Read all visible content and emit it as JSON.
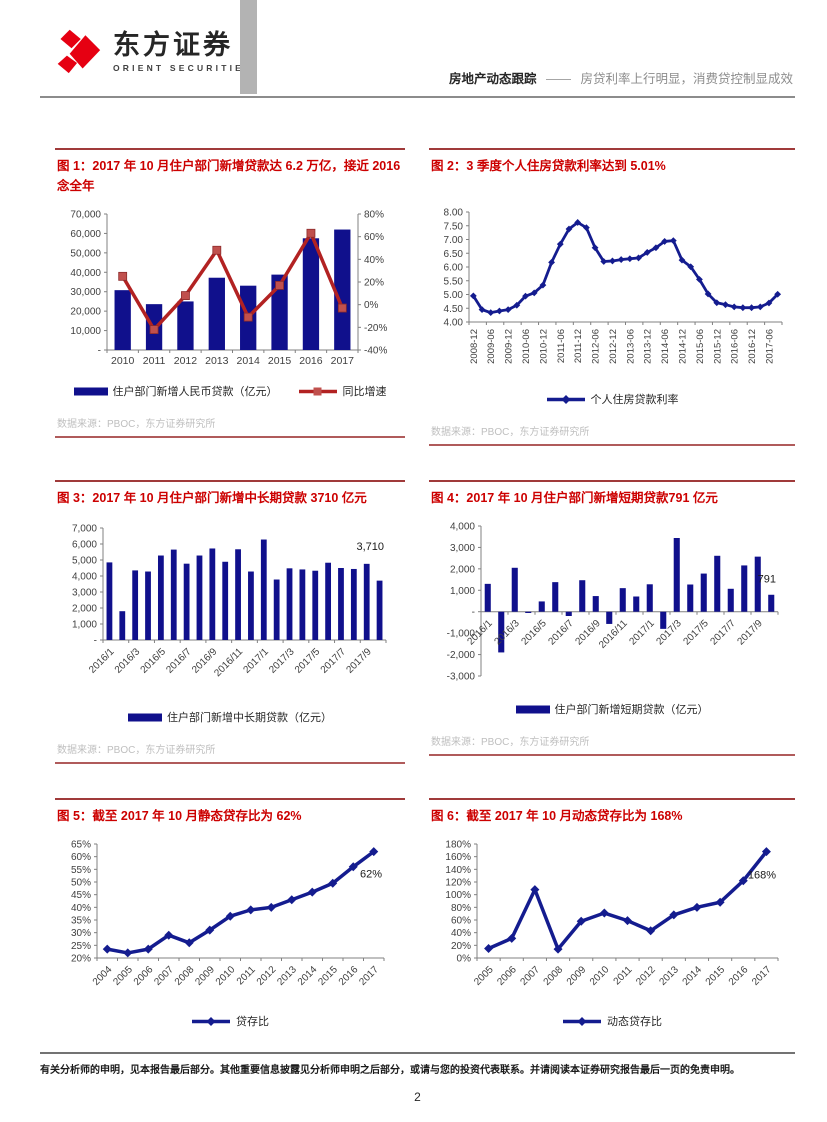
{
  "page": {
    "header": {
      "brand_cn": "东方证券",
      "brand_en": "ORIENT SECURITIES",
      "report_type": "房地产动态跟踪",
      "separator": "——",
      "subtitle": "房贷利率上行明显，消费贷控制显成效"
    },
    "footer": {
      "disclaimer": "有关分析师的申明，见本报告最后部分。其他重要信息披露见分析师申明之后部分，或请与您的投资代表联系。并请阅读本证券研究报告最后一页的免责申明。",
      "page_number": "2"
    },
    "colors": {
      "title_red": "#CC0000",
      "rule_red": "#A03A3A",
      "bar_navy": "#10108C",
      "line_navy": "#141C8F",
      "line_red": "#B22222",
      "marker_red": "#C0504D",
      "brand_red": "#E60012",
      "source_gray": "#BFBFBF"
    }
  },
  "chart_data": [
    {
      "id": "figure-1",
      "type": "combo",
      "title": "图 1：2017 年 10 月住户部门新增贷款达 6.2 万亿，接近 2016 念全年",
      "source": "数据来源：PBOC，东方证券研究所",
      "categories": [
        "2010",
        "2011",
        "2012",
        "2013",
        "2014",
        "2015",
        "2016",
        "2017"
      ],
      "x_label_every": 1,
      "series": [
        {
          "name": "住户部门新增人民币贷款（亿元）",
          "type": "bar",
          "axis": "left",
          "color": "#10108C",
          "values": [
            30800,
            23600,
            25000,
            37200,
            33100,
            38800,
            57500,
            62000
          ]
        },
        {
          "name": "同比增速",
          "type": "line",
          "axis": "right",
          "color": "#B22222",
          "marker": "square",
          "marker_color": "#C0504D",
          "values": [
            25,
            -22,
            8,
            48,
            -11,
            17,
            63,
            -3
          ]
        }
      ],
      "y_left": {
        "min": 0,
        "max": 70000,
        "tick_labels": [
          "70,000",
          "60,000",
          "50,000",
          "40,000",
          "30,000",
          "20,000",
          "10,000",
          "-"
        ]
      },
      "y_right": {
        "min": -40,
        "max": 80,
        "tick_labels": [
          "80%",
          "60%",
          "40%",
          "20%",
          "0%",
          "-20%",
          "-40%"
        ]
      },
      "annotation": null
    },
    {
      "id": "figure-2",
      "type": "line",
      "title": "图 2：3 季度个人住房贷款利率达到 5.01%",
      "source": "数据来源：PBOC，东方证券研究所",
      "categories": [
        "2008-12",
        "2009-03",
        "2009-06",
        "2009-09",
        "2009-12",
        "2010-03",
        "2010-06",
        "2010-09",
        "2010-12",
        "2011-03",
        "2011-06",
        "2011-09",
        "2011-12",
        "2012-03",
        "2012-06",
        "2012-09",
        "2012-12",
        "2013-03",
        "2013-06",
        "2013-09",
        "2013-12",
        "2014-03",
        "2014-06",
        "2014-09",
        "2014-12",
        "2015-03",
        "2015-06",
        "2015-09",
        "2015-12",
        "2016-03",
        "2016-06",
        "2016-09",
        "2016-12",
        "2017-03",
        "2017-06",
        "2017-09"
      ],
      "x_label_every": 2,
      "series": [
        {
          "name": "个人住房贷款利率",
          "type": "line",
          "axis": "left",
          "color": "#141C8F",
          "marker": "diamond",
          "values": [
            4.95,
            4.45,
            4.34,
            4.4,
            4.45,
            4.61,
            4.94,
            5.06,
            5.34,
            6.17,
            6.83,
            7.38,
            7.62,
            7.43,
            6.7,
            6.2,
            6.22,
            6.27,
            6.3,
            6.33,
            6.53,
            6.7,
            6.93,
            6.96,
            6.25,
            6.01,
            5.55,
            5.02,
            4.7,
            4.63,
            4.55,
            4.52,
            4.52,
            4.55,
            4.69,
            5.01
          ]
        }
      ],
      "y_left": {
        "min": 4,
        "max": 8,
        "tick_labels": [
          "8.00",
          "7.50",
          "7.00",
          "6.50",
          "6.00",
          "5.50",
          "5.00",
          "4.50",
          "4.00"
        ]
      },
      "annotation": null
    },
    {
      "id": "figure-3",
      "type": "bar",
      "title": "图 3：2017 年 10 月住户部门新增中长期贷款 3710 亿元",
      "source": "数据来源：PBOC，东方证券研究所",
      "categories": [
        "2016/1",
        "2016/2",
        "2016/3",
        "2016/4",
        "2016/5",
        "2016/6",
        "2016/7",
        "2016/8",
        "2016/9",
        "2016/10",
        "2016/11",
        "2016/12",
        "2017/1",
        "2017/2",
        "2017/3",
        "2017/4",
        "2017/5",
        "2017/6",
        "2017/7",
        "2017/8",
        "2017/9",
        "2017/10"
      ],
      "x_label_every": 2,
      "series": [
        {
          "name": "住户部门新增中长期贷款（亿元）",
          "type": "bar",
          "axis": "left",
          "color": "#10108C",
          "values": [
            4850,
            1800,
            4350,
            4280,
            5280,
            5650,
            4770,
            5280,
            5720,
            4890,
            5670,
            4280,
            6280,
            3780,
            4480,
            4410,
            4330,
            4830,
            4500,
            4440,
            4760,
            3710
          ]
        }
      ],
      "y_left": {
        "min": 0,
        "max": 7000,
        "tick_labels": [
          "7,000",
          "6,000",
          "5,000",
          "4,000",
          "3,000",
          "2,000",
          "1,000",
          "-"
        ]
      },
      "annotation": {
        "text": "3,710",
        "y_value": 5800
      }
    },
    {
      "id": "figure-4",
      "type": "bar",
      "title": "图 4：2017 年 10 月住户部门新增短期贷款791 亿元",
      "source": "数据来源：PBOC，东方证券研究所",
      "categories": [
        "2016/1",
        "2016/2",
        "2016/3",
        "2016/4",
        "2016/5",
        "2016/6",
        "2016/7",
        "2016/8",
        "2016/9",
        "2016/10",
        "2016/11",
        "2016/12",
        "2017/1",
        "2017/2",
        "2017/3",
        "2017/4",
        "2017/5",
        "2017/6",
        "2017/7",
        "2017/8",
        "2017/9",
        "2017/10"
      ],
      "x_label_every": 2,
      "series": [
        {
          "name": "住户部门新增短期贷款（亿元）",
          "type": "bar",
          "axis": "left",
          "color": "#10108C",
          "values": [
            1300,
            -1900,
            2050,
            -60,
            480,
            1380,
            -200,
            1470,
            730,
            -570,
            1100,
            710,
            1280,
            -800,
            3440,
            1270,
            1780,
            2610,
            1070,
            2160,
            2570,
            791
          ]
        }
      ],
      "y_left": {
        "min": -3000,
        "max": 4000,
        "tick_labels": [
          "4,000",
          "3,000",
          "2,000",
          "1,000",
          "-",
          "-1,000",
          "-2,000",
          "-3,000"
        ]
      },
      "annotation": {
        "text": "791",
        "y_value": 1500
      }
    },
    {
      "id": "figure-5",
      "type": "line",
      "title": "图 5：截至 2017 年 10 月静态贷存比为 62%",
      "source": null,
      "categories": [
        "2004",
        "2005",
        "2006",
        "2007",
        "2008",
        "2009",
        "2010",
        "2011",
        "2012",
        "2013",
        "2014",
        "2015",
        "2016",
        "2017"
      ],
      "x_label_every": 1,
      "series": [
        {
          "name": "贷存比",
          "type": "line",
          "axis": "left",
          "color": "#141C8F",
          "marker": "diamond",
          "values": [
            23.5,
            22,
            23.5,
            29,
            26,
            31,
            36.5,
            39,
            40,
            43,
            46,
            49.5,
            56,
            62
          ]
        }
      ],
      "y_left": {
        "min": 20,
        "max": 65,
        "tick_labels": [
          "65%",
          "60%",
          "55%",
          "50%",
          "45%",
          "40%",
          "35%",
          "30%",
          "25%",
          "20%"
        ]
      },
      "annotation": {
        "text": "62%",
        "y_value": 53
      }
    },
    {
      "id": "figure-6",
      "type": "line",
      "title": "图 6：截至 2017 年 10 月动态贷存比为 168%",
      "source": null,
      "categories": [
        "2005",
        "2006",
        "2007",
        "2008",
        "2009",
        "2010",
        "2011",
        "2012",
        "2013",
        "2014",
        "2015",
        "2016",
        "2017"
      ],
      "x_label_every": 1,
      "series": [
        {
          "name": "动态贷存比",
          "type": "line",
          "axis": "left",
          "color": "#141C8F",
          "marker": "diamond",
          "values": [
            15,
            31,
            108,
            14,
            58,
            71,
            59,
            43,
            68,
            80,
            88,
            122,
            168
          ]
        }
      ],
      "y_left": {
        "min": 0,
        "max": 180,
        "tick_labels": [
          "180%",
          "160%",
          "140%",
          "120%",
          "100%",
          "80%",
          "60%",
          "40%",
          "20%",
          "0%"
        ]
      },
      "annotation": {
        "text": "168%",
        "y_value": 130
      }
    }
  ]
}
